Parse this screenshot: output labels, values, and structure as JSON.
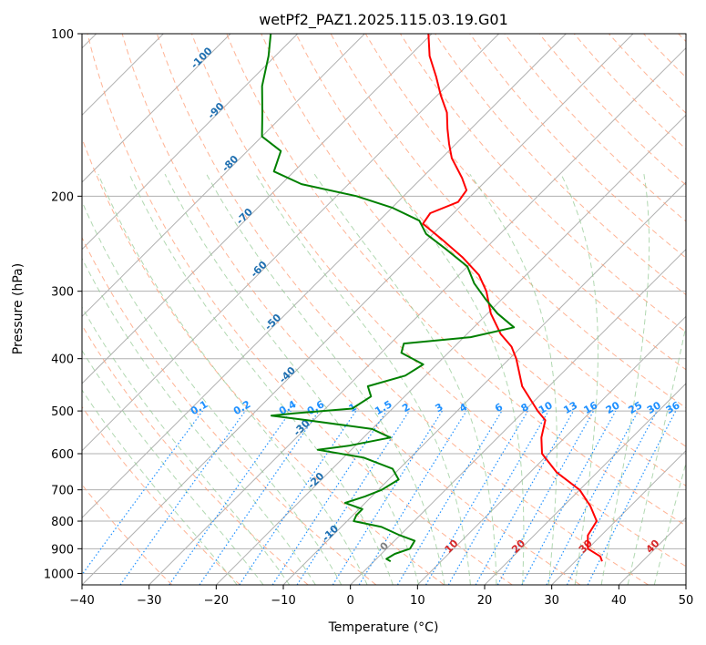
{
  "chart_data": {
    "type": "line",
    "title": "wetPf2_PAZ1.2025.115.03.19.G01",
    "xlabel": "Temperature (°C)",
    "ylabel": "Pressure (hPa)",
    "xlim": [
      -40,
      50
    ],
    "ylim": [
      1050,
      100
    ],
    "y_scale": "log",
    "skew": 45,
    "grid": true,
    "x_ticks": [
      -40,
      -30,
      -20,
      -10,
      0,
      10,
      20,
      30,
      40,
      50
    ],
    "x_tick_labels": [
      "−40",
      "−30",
      "−20",
      "−10",
      "0",
      "10",
      "20",
      "30",
      "40",
      "50"
    ],
    "y_ticks": [
      100,
      200,
      300,
      400,
      500,
      600,
      700,
      800,
      900,
      1000
    ],
    "y_tick_labels": [
      "100",
      "200",
      "300",
      "400",
      "500",
      "600",
      "700",
      "800",
      "900",
      "1000"
    ],
    "colors": {
      "temperature": "#ff0000",
      "dewpoint": "#008000",
      "isotherm": "#b0b0b0",
      "dry_adiabat": "#ffa07a",
      "moist_adiabat": "#90c890",
      "mixing_ratio": "#1e90ff",
      "mixing_label": "#1e90ff",
      "isotherm_label_cold": "#1f6fb0",
      "isotherm_label_zero": "#808080",
      "isotherm_label_warm": "#d62728"
    },
    "series": [
      {
        "key": "temperature",
        "points": [
          {
            "p": 950,
            "t": 34.0
          },
          {
            "p": 930,
            "t": 33.0
          },
          {
            "p": 900,
            "t": 30.0
          },
          {
            "p": 850,
            "t": 28.0
          },
          {
            "p": 800,
            "t": 27.2
          },
          {
            "p": 750,
            "t": 24.0
          },
          {
            "p": 700,
            "t": 20.0
          },
          {
            "p": 650,
            "t": 14.0
          },
          {
            "p": 600,
            "t": 9.0
          },
          {
            "p": 560,
            "t": 6.5
          },
          {
            "p": 520,
            "t": 4.5
          },
          {
            "p": 500,
            "t": 2.0
          },
          {
            "p": 450,
            "t": -4.0
          },
          {
            "p": 400,
            "t": -9.0
          },
          {
            "p": 380,
            "t": -11.5
          },
          {
            "p": 360,
            "t": -15.0
          },
          {
            "p": 330,
            "t": -19.5
          },
          {
            "p": 300,
            "t": -23.5
          },
          {
            "p": 280,
            "t": -27.0
          },
          {
            "p": 260,
            "t": -32.0
          },
          {
            "p": 240,
            "t": -38.0
          },
          {
            "p": 225,
            "t": -43.0
          },
          {
            "p": 215,
            "t": -43.5
          },
          {
            "p": 205,
            "t": -41.0
          },
          {
            "p": 195,
            "t": -41.5
          },
          {
            "p": 185,
            "t": -44.0
          },
          {
            "p": 170,
            "t": -48.5
          },
          {
            "p": 160,
            "t": -51.0
          },
          {
            "p": 150,
            "t": -53.5
          },
          {
            "p": 140,
            "t": -56.0
          },
          {
            "p": 130,
            "t": -59.5
          },
          {
            "p": 120,
            "t": -63.0
          },
          {
            "p": 110,
            "t": -67.0
          },
          {
            "p": 100,
            "t": -70.5
          }
        ]
      },
      {
        "key": "dewpoint",
        "points": [
          {
            "p": 950,
            "t": 2.5
          },
          {
            "p": 940,
            "t": 1.5
          },
          {
            "p": 920,
            "t": 2.0
          },
          {
            "p": 900,
            "t": 3.5
          },
          {
            "p": 870,
            "t": 3.0
          },
          {
            "p": 850,
            "t": 0.0
          },
          {
            "p": 820,
            "t": -4.0
          },
          {
            "p": 800,
            "t": -9.0
          },
          {
            "p": 780,
            "t": -9.5
          },
          {
            "p": 760,
            "t": -9.5
          },
          {
            "p": 740,
            "t": -13.0
          },
          {
            "p": 720,
            "t": -11.0
          },
          {
            "p": 700,
            "t": -9.5
          },
          {
            "p": 670,
            "t": -8.5
          },
          {
            "p": 640,
            "t": -11.0
          },
          {
            "p": 610,
            "t": -17.0
          },
          {
            "p": 590,
            "t": -25.0
          },
          {
            "p": 580,
            "t": -21.0
          },
          {
            "p": 560,
            "t": -16.0
          },
          {
            "p": 540,
            "t": -20.0
          },
          {
            "p": 520,
            "t": -31.0
          },
          {
            "p": 510,
            "t": -37.0
          },
          {
            "p": 505,
            "t": -34.0
          },
          {
            "p": 495,
            "t": -26.0
          },
          {
            "p": 470,
            "t": -25.0
          },
          {
            "p": 450,
            "t": -27.0
          },
          {
            "p": 430,
            "t": -23.0
          },
          {
            "p": 410,
            "t": -22.0
          },
          {
            "p": 390,
            "t": -27.0
          },
          {
            "p": 375,
            "t": -28.0
          },
          {
            "p": 365,
            "t": -19.0
          },
          {
            "p": 350,
            "t": -14.0
          },
          {
            "p": 330,
            "t": -18.5
          },
          {
            "p": 310,
            "t": -22.5
          },
          {
            "p": 290,
            "t": -26.5
          },
          {
            "p": 270,
            "t": -30.0
          },
          {
            "p": 250,
            "t": -36.0
          },
          {
            "p": 235,
            "t": -41.0
          },
          {
            "p": 222,
            "t": -44.0
          },
          {
            "p": 210,
            "t": -50.0
          },
          {
            "p": 200,
            "t": -57.0
          },
          {
            "p": 190,
            "t": -67.0
          },
          {
            "p": 180,
            "t": -73.0
          },
          {
            "p": 165,
            "t": -75.0
          },
          {
            "p": 155,
            "t": -80.0
          },
          {
            "p": 140,
            "t": -83.5
          },
          {
            "p": 125,
            "t": -87.5
          },
          {
            "p": 110,
            "t": -91.0
          },
          {
            "p": 100,
            "t": -94.0
          }
        ]
      }
    ],
    "isotherm_labels": [
      {
        "text": "-100",
        "t": -100
      },
      {
        "text": "-90",
        "t": -90
      },
      {
        "text": "-80",
        "t": -80
      },
      {
        "text": "-70",
        "t": -70
      },
      {
        "text": "-60",
        "t": -60
      },
      {
        "text": "-50",
        "t": -50
      },
      {
        "text": "-40",
        "t": -40
      },
      {
        "text": "-30",
        "t": -30
      },
      {
        "text": "-20",
        "t": -20
      },
      {
        "text": "-10",
        "t": -10
      },
      {
        "text": "0",
        "t": 0
      },
      {
        "text": "10",
        "t": 10
      },
      {
        "text": "20",
        "t": 20
      },
      {
        "text": "30",
        "t": 30
      },
      {
        "text": "40",
        "t": 40
      }
    ],
    "mixing_ratio_labels": [
      "0.1",
      "0.2",
      "0.4",
      "0.6",
      "1",
      "1.5",
      "2",
      "3",
      "4",
      "6",
      "8",
      "10",
      "13",
      "16",
      "20",
      "25",
      "30",
      "36"
    ]
  }
}
